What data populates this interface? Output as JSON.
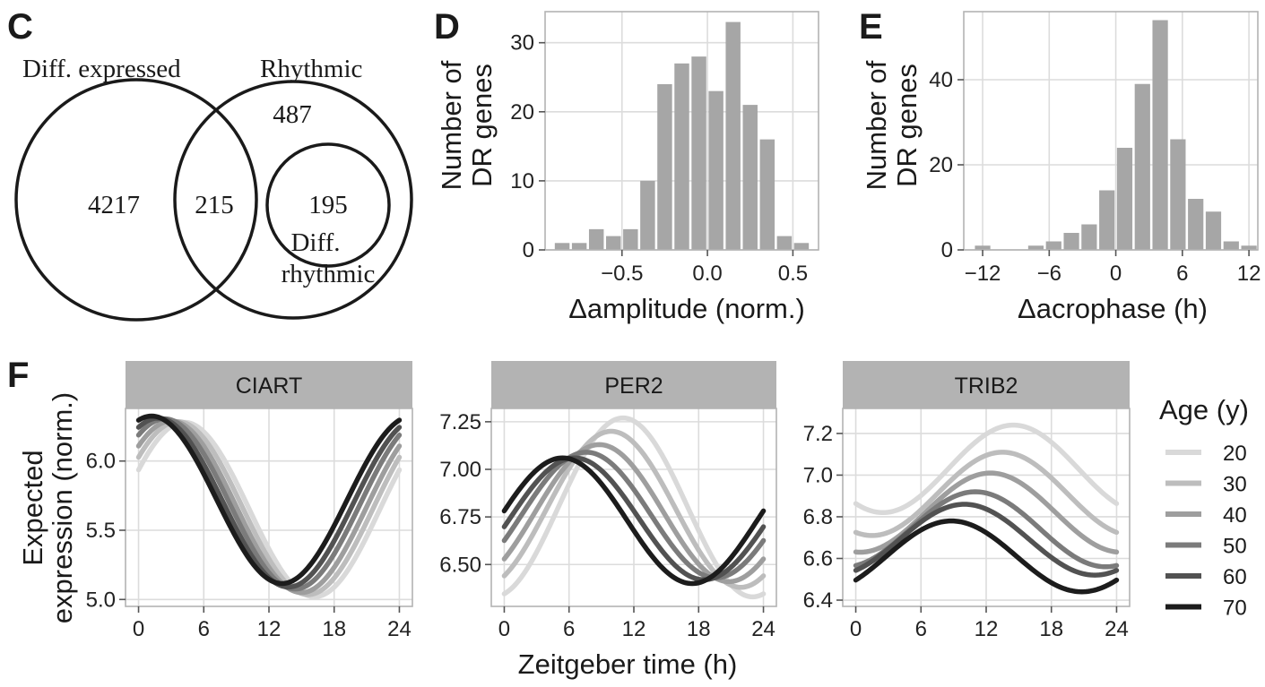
{
  "panels": {
    "C": "C",
    "D": "D",
    "E": "E",
    "F": "F"
  },
  "venn": {
    "sets": [
      "Diff. expressed",
      "Rhythmic"
    ],
    "inner_set_lines": [
      "Diff.",
      "rhythmic"
    ],
    "counts": {
      "diff_expressed_only": "4217",
      "overlap": "215",
      "rhythmic_only": "487",
      "diff_rhythmic": "195"
    }
  },
  "chart_data": [
    {
      "id": "D",
      "type": "bar",
      "xlabel": "Δamplitude (norm.)",
      "ylabel_lines": [
        "Number of",
        "DR genes"
      ],
      "xlim": [
        -0.95,
        0.65
      ],
      "ylim": [
        0,
        34.5
      ],
      "xticks": [
        -0.5,
        0.0,
        0.5
      ],
      "xtick_labels": [
        "−0.5",
        "0.0",
        "0.5"
      ],
      "yticks": [
        0,
        10,
        20,
        30
      ],
      "bin_width": 0.1,
      "bin_centers": [
        -0.85,
        -0.75,
        -0.65,
        -0.55,
        -0.45,
        -0.35,
        -0.25,
        -0.15,
        -0.05,
        0.05,
        0.15,
        0.25,
        0.35,
        0.45,
        0.55
      ],
      "values": [
        1,
        1,
        3,
        2,
        3,
        10,
        24,
        27,
        28,
        23,
        33,
        21,
        16,
        2,
        1
      ],
      "bar_color": "#a6a6a6"
    },
    {
      "id": "E",
      "type": "bar",
      "xlabel": "Δacrophase (h)",
      "ylabel_lines": [
        "Number of",
        "DR genes"
      ],
      "xlim": [
        -13.7,
        12.8
      ],
      "ylim": [
        0,
        56
      ],
      "xticks": [
        -12,
        -6,
        0,
        6,
        12
      ],
      "xtick_labels": [
        "−12",
        "−6",
        "0",
        "6",
        "12"
      ],
      "yticks": [
        0,
        20,
        40
      ],
      "bin_width": 1.6,
      "bin_centers": [
        -12.0,
        -10.4,
        -8.8,
        -7.2,
        -5.6,
        -4.0,
        -2.4,
        -0.8,
        0.8,
        2.4,
        4.0,
        5.6,
        7.2,
        8.8,
        10.4,
        12.0
      ],
      "values": [
        1,
        0,
        0,
        1,
        2,
        4,
        6,
        14,
        24,
        39,
        54,
        26,
        12,
        9,
        2,
        1
      ],
      "bar_color": "#a6a6a6"
    },
    {
      "id": "F",
      "type": "line",
      "xlabel": "Zeitgeber time (h)",
      "ylabel_lines": [
        "Expected",
        "expression (norm.)"
      ],
      "legend_title": "Age (y)",
      "legend_position": "right",
      "ages": [
        20,
        30,
        40,
        50,
        60,
        70
      ],
      "age_colors": [
        "#d9d9d9",
        "#bdbdbd",
        "#9e9e9e",
        "#7b7b7b",
        "#525252",
        "#1c1c1c"
      ],
      "xticks": [
        0,
        6,
        12,
        18,
        24
      ],
      "xlim": [
        -1.2,
        25.2
      ],
      "facets": [
        {
          "gene": "CIART",
          "ylim": [
            4.95,
            6.38
          ],
          "yticks": [
            5.0,
            5.5,
            6.0
          ],
          "ytick_labels": [
            "5.0",
            "5.5",
            "6.0"
          ],
          "mesor": [
            5.65,
            5.66,
            5.67,
            5.69,
            5.7,
            5.72
          ],
          "amplitude": [
            0.63,
            0.625,
            0.62,
            0.615,
            0.61,
            0.605
          ],
          "acrophase_h": [
            4.2,
            3.6,
            3.0,
            2.4,
            1.8,
            1.2
          ]
        },
        {
          "gene": "PER2",
          "ylim": [
            6.28,
            7.32
          ],
          "yticks": [
            6.5,
            6.75,
            7.0,
            7.25
          ],
          "ytick_labels": [
            "6.50",
            "6.75",
            "7.00",
            "7.25"
          ],
          "mesor": [
            6.8,
            6.79,
            6.77,
            6.76,
            6.74,
            6.73
          ],
          "amplitude": [
            0.47,
            0.41,
            0.36,
            0.33,
            0.32,
            0.33
          ],
          "acrophase_h": [
            11.0,
            9.9,
            8.8,
            7.6,
            6.5,
            5.4
          ]
        },
        {
          "gene": "TRIB2",
          "ylim": [
            6.37,
            7.32
          ],
          "yticks": [
            6.4,
            6.6,
            6.8,
            7.0,
            7.2
          ],
          "ytick_labels": [
            "6.4",
            "6.6",
            "6.8",
            "7.0",
            "7.2"
          ],
          "mesor": [
            7.03,
            6.91,
            6.82,
            6.74,
            6.69,
            6.61
          ],
          "amplitude": [
            0.21,
            0.2,
            0.19,
            0.18,
            0.17,
            0.17
          ],
          "acrophase_h": [
            14.5,
            13.5,
            12.4,
            11.0,
            10.0,
            8.8
          ]
        }
      ]
    }
  ]
}
